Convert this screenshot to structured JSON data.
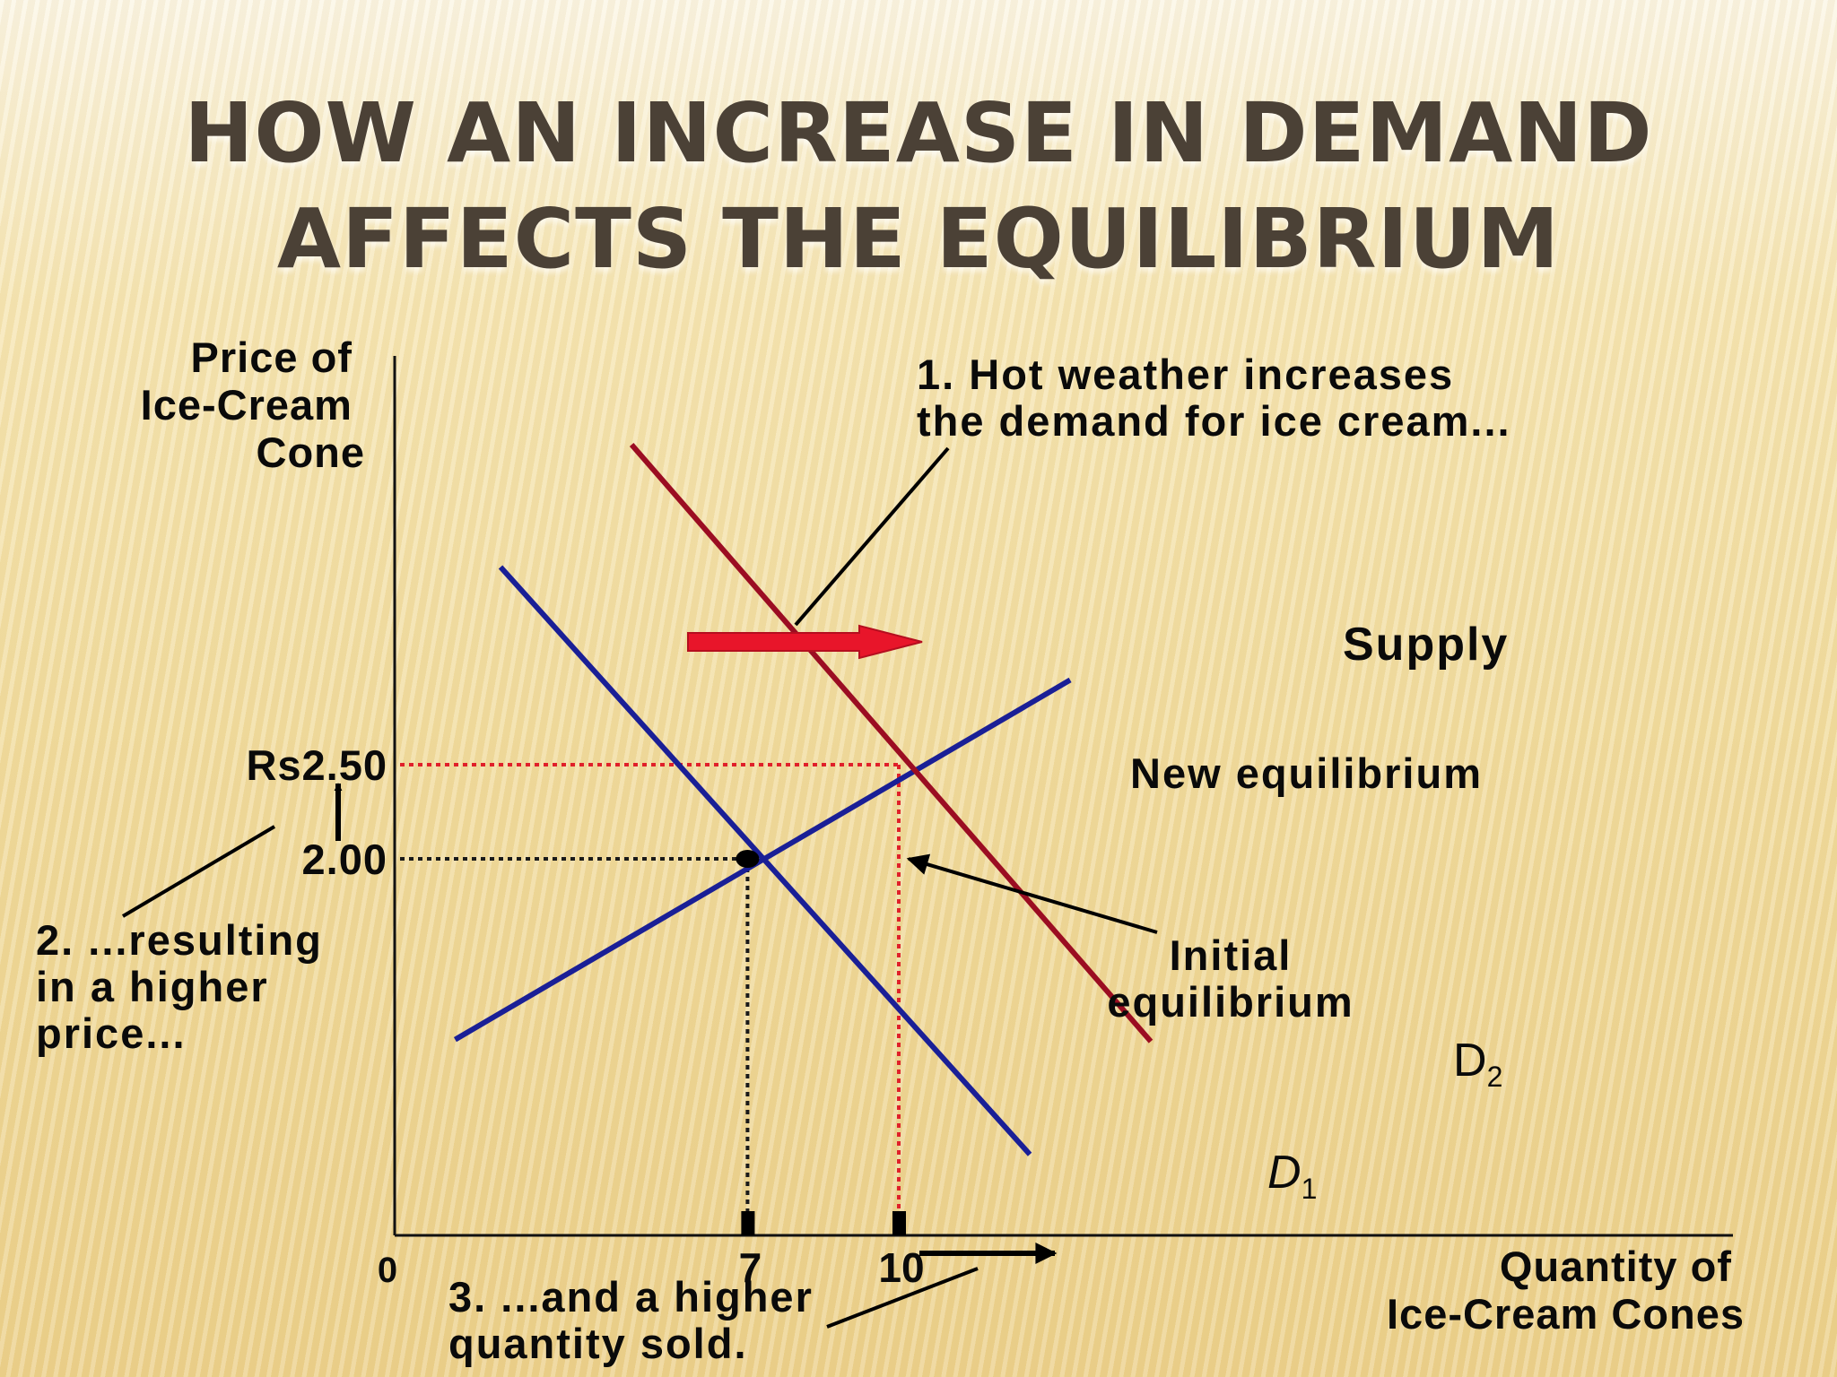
{
  "title": {
    "line1": "HOW AN INCREASE IN DEMAND",
    "line2": "AFFECTS THE EQUILIBRIUM"
  },
  "chart_data": {
    "type": "line",
    "ylabel": [
      "Price of",
      "Ice-Cream",
      "Cone"
    ],
    "xlabel": [
      "Quantity of",
      "Ice-Cream Cones"
    ],
    "origin_label": "0",
    "x_ticks": [
      {
        "value": 7,
        "label": "7"
      },
      {
        "value": 10,
        "label": "10"
      }
    ],
    "y_ticks": [
      {
        "value": 2.0,
        "label": "2.00"
      },
      {
        "value": 2.5,
        "label": "Rs2.50"
      }
    ],
    "series": [
      {
        "name": "Supply",
        "color": "#1a1f96",
        "points": [
          [
            1.2,
            1.04
          ],
          [
            13.4,
            2.95
          ]
        ]
      },
      {
        "name": "D",
        "subscript": "1",
        "italic": true,
        "color": "#1a1f96",
        "points": [
          [
            2.1,
            3.55
          ],
          [
            12.6,
            0.43
          ]
        ]
      },
      {
        "name": "D",
        "subscript": "2",
        "italic": false,
        "color": "#9b0d22",
        "points": [
          [
            4.7,
            4.2
          ],
          [
            15.0,
            1.03
          ]
        ]
      }
    ],
    "equilibria": [
      {
        "label": [
          "Initial",
          "equilibrium"
        ],
        "x": 7,
        "y": 2.0,
        "guide_color": "#1a1a1a"
      },
      {
        "label": [
          "New equilibrium"
        ],
        "x": 10,
        "y": 2.5,
        "guide_color": "#e0202a"
      }
    ],
    "annotations": [
      [
        "1. Hot weather increases",
        "the demand for ice cream..."
      ],
      [
        "2. ...resulting",
        "in a higher",
        "price..."
      ],
      [
        "3. ...and a higher",
        "quantity sold."
      ]
    ],
    "shift_arrow_color": "#e8152a"
  }
}
